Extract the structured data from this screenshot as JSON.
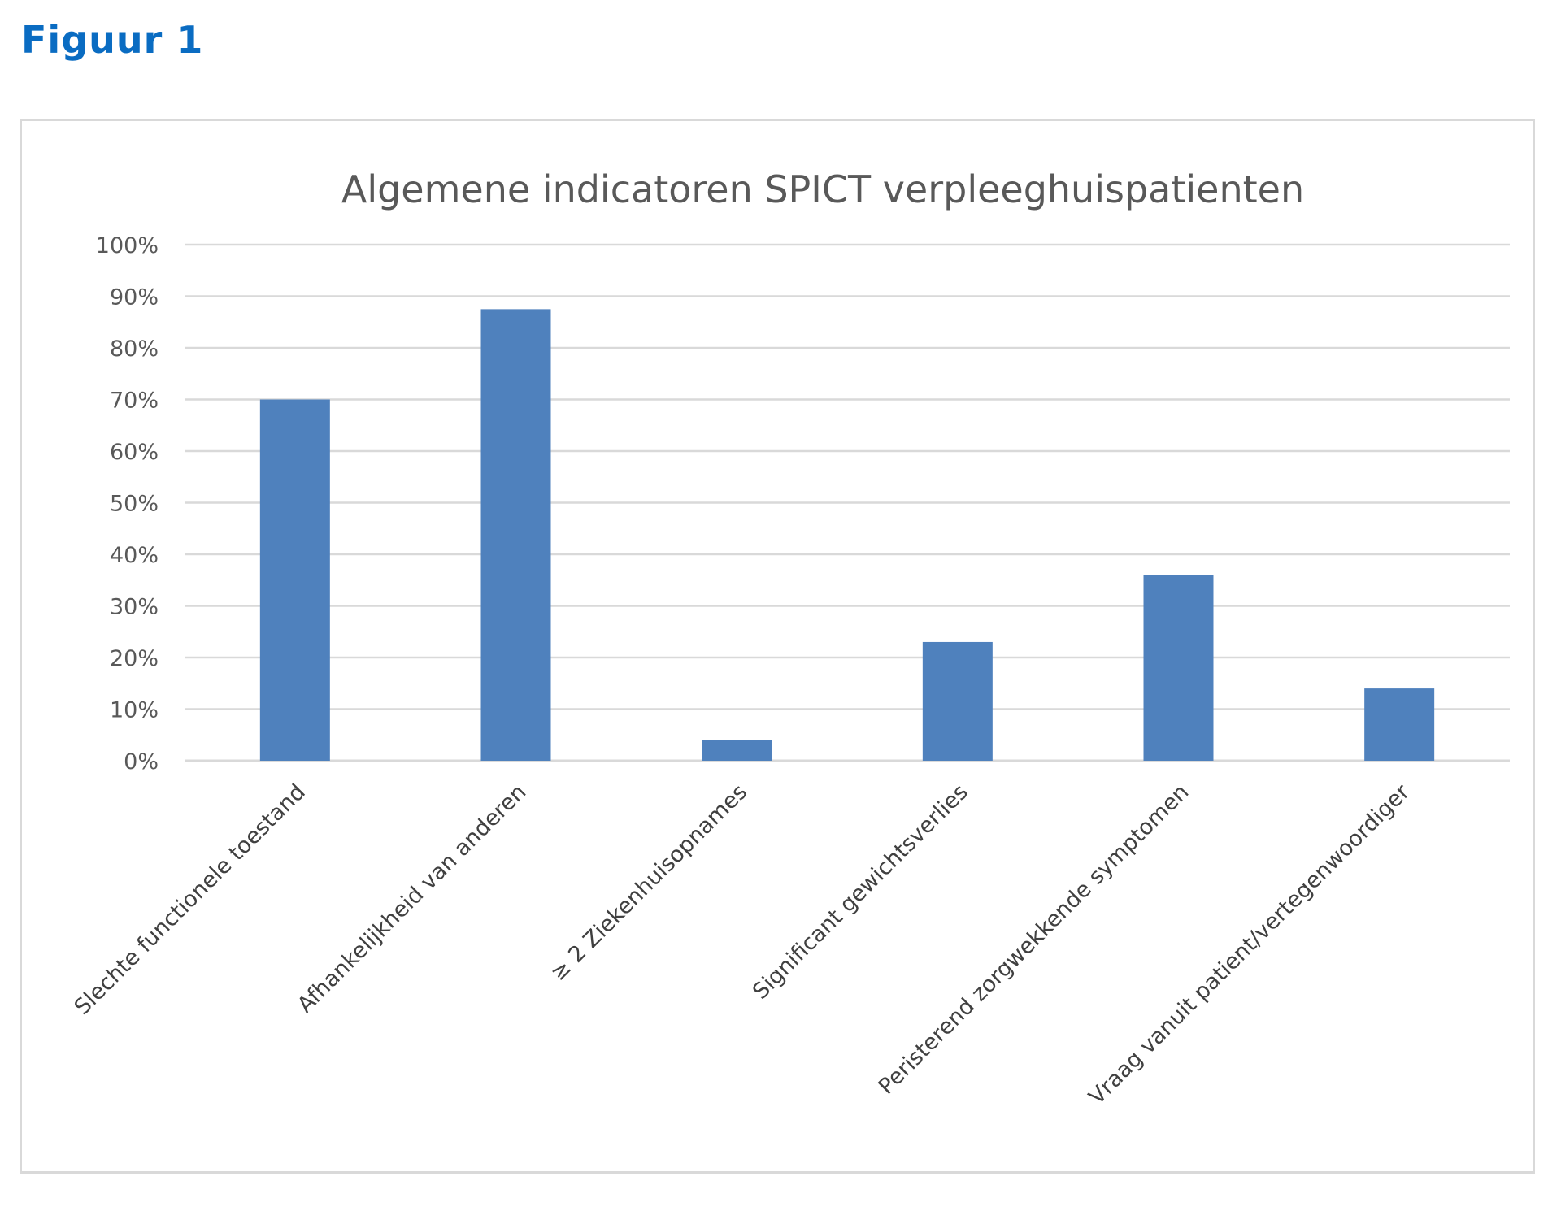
{
  "figure": {
    "heading": "Figuur 1"
  },
  "chart_data": {
    "type": "bar",
    "title": "Algemene indicatoren SPICT verpleeghuispatienten",
    "categories": [
      "Slechte functionele toestand",
      "Afhankelijkheid van anderen",
      "≥ 2 Ziekenhuisopnames",
      "Significant gewichtsverlies",
      "Peristerend zorgwekkende symptomen",
      "Vraag vanuit patient/vertegenwoordiger"
    ],
    "values": [
      0.7,
      0.875,
      0.04,
      0.23,
      0.36,
      0.14
    ],
    "ylim": [
      0,
      1
    ],
    "yticks": [
      "0%",
      "10%",
      "20%",
      "30%",
      "40%",
      "50%",
      "60%",
      "70%",
      "80%",
      "90%",
      "100%"
    ],
    "xlabel": "",
    "ylabel": "",
    "grid": true,
    "legend": "none",
    "colors": {
      "bar": "#4f81bd",
      "grid": "#d9d9d9",
      "text": "#595959"
    }
  }
}
